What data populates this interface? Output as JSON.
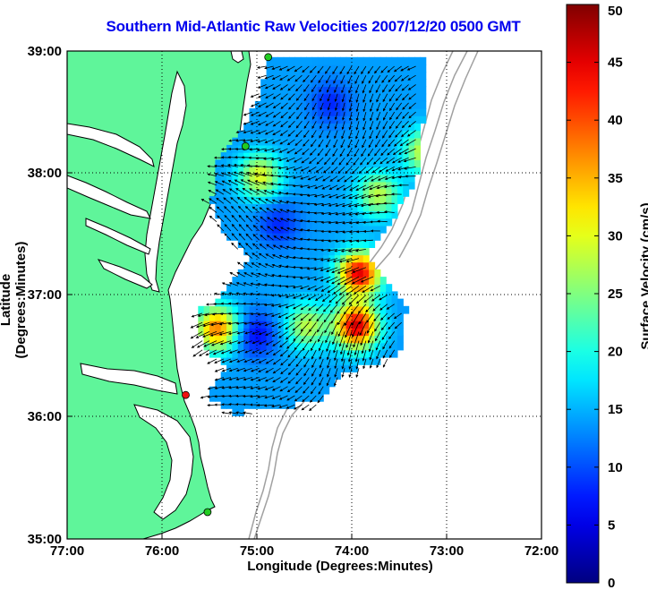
{
  "title": "Southern Mid-Atlantic Raw Velocities 2007/12/20 0500 GMT",
  "xlabel": "Longitude (Degrees:Minutes)",
  "ylabel": "Latitude (Degrees:Minutes)",
  "colorbar": {
    "label": "Surface Velocity (cm/s)",
    "ticks": [
      "0",
      "5",
      "10",
      "15",
      "20",
      "25",
      "30",
      "35",
      "40",
      "45",
      "50"
    ],
    "min": 0,
    "max": 50,
    "colormap": "jet"
  },
  "axes": {
    "x_ticks": [
      "77:00",
      "76:00",
      "75:00",
      "74:00",
      "73:00",
      "72:00"
    ],
    "y_ticks": [
      "39:00",
      "38:00",
      "37:00",
      "36:00",
      "35:00"
    ],
    "x_range": [
      -77,
      -72
    ],
    "y_range": [
      35,
      39
    ],
    "grid": "dotted"
  },
  "colors": {
    "land": "#5ff59a",
    "ocean": "#ffffff",
    "bathymetry": "#a0a0a0",
    "coastline": "#000000",
    "title": "#0000ee",
    "site_active": "#22cc22",
    "site_inactive": "#ee1111"
  },
  "radar_sites": [
    {
      "lon": -74.88,
      "lat": 38.95,
      "status": "active"
    },
    {
      "lon": -75.12,
      "lat": 38.22,
      "status": "active"
    },
    {
      "lon": -75.75,
      "lat": 36.18,
      "status": "inactive"
    },
    {
      "lon": -75.52,
      "lat": 35.22,
      "status": "active"
    }
  ],
  "hotspots": [
    {
      "lon": -74.25,
      "lat": 38.55,
      "speed": 8
    },
    {
      "lon": -74.8,
      "lat": 37.55,
      "speed": 8
    },
    {
      "lon": -75.05,
      "lat": 36.65,
      "speed": 6
    },
    {
      "lon": -73.95,
      "lat": 37.15,
      "speed": 45
    },
    {
      "lon": -73.98,
      "lat": 36.72,
      "speed": 46
    },
    {
      "lon": -75.45,
      "lat": 36.7,
      "speed": 38
    },
    {
      "lon": -75.0,
      "lat": 37.95,
      "speed": 30
    },
    {
      "lon": -73.75,
      "lat": 37.8,
      "speed": 28
    },
    {
      "lon": -73.25,
      "lat": 38.15,
      "speed": 30
    },
    {
      "lon": -74.5,
      "lat": 36.72,
      "speed": 28
    }
  ]
}
